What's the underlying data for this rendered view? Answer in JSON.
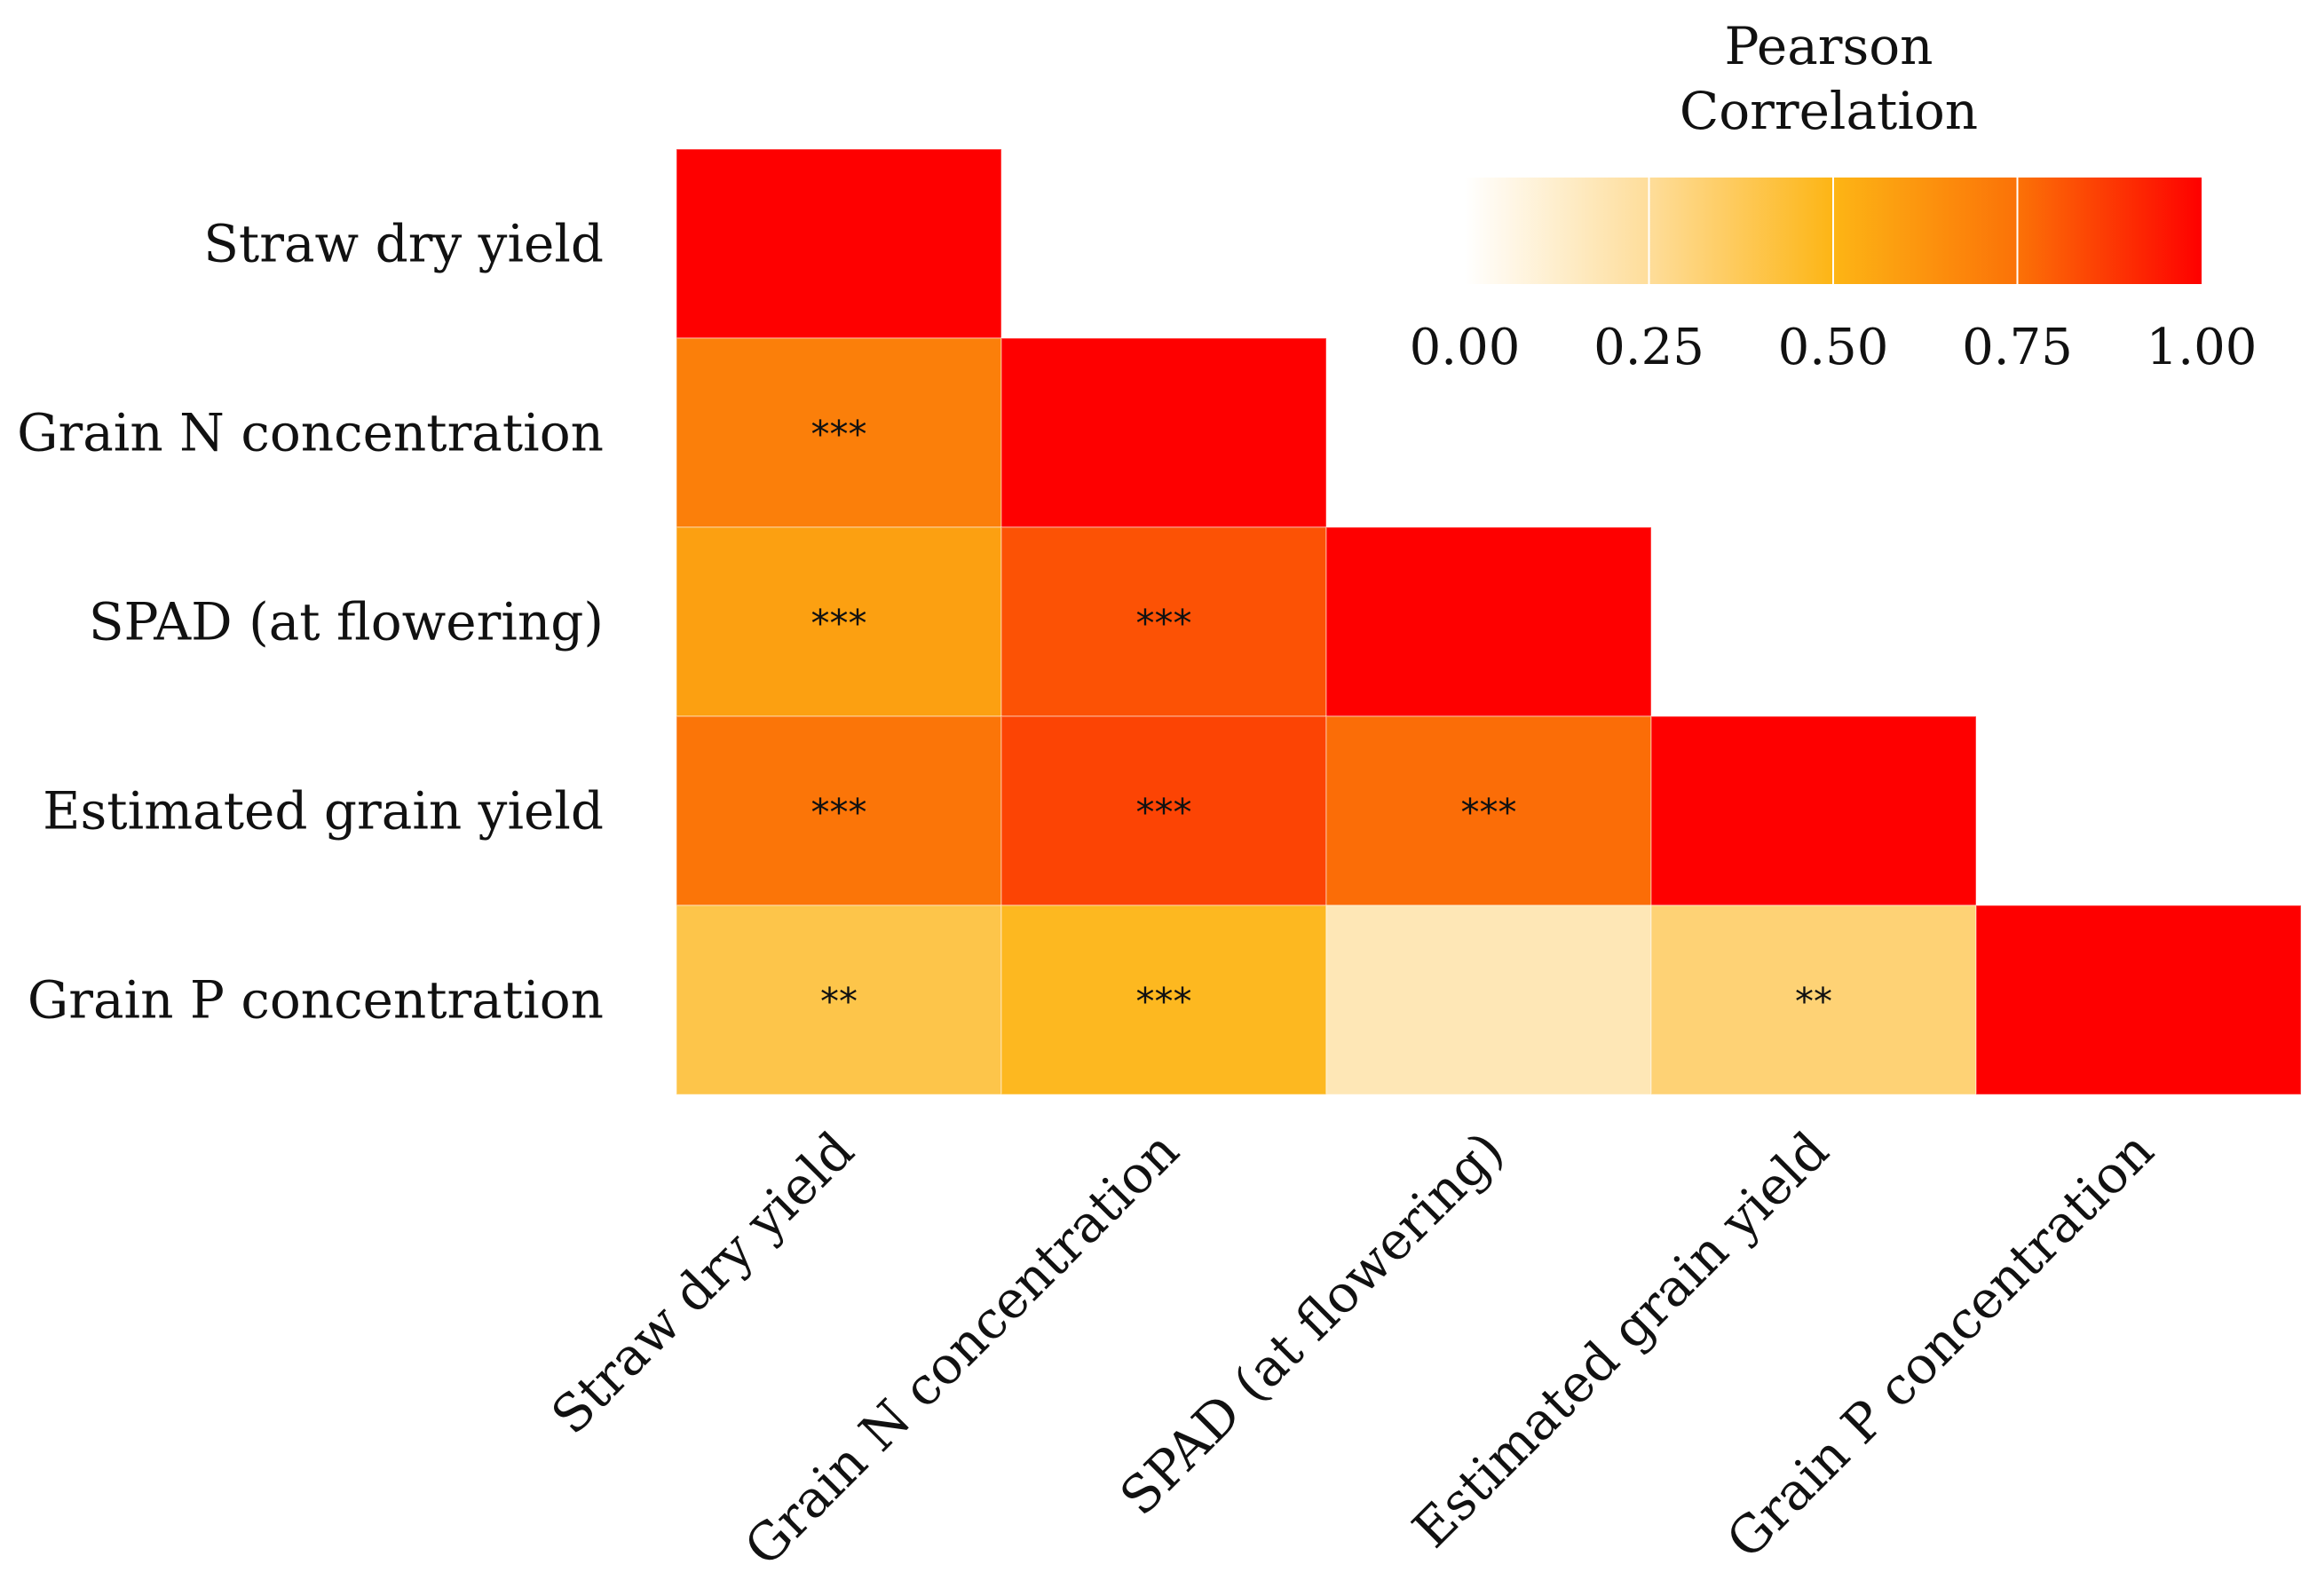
{
  "chart_data": {
    "type": "heatmap",
    "variables": [
      "Straw dry yield",
      "Grain N concentration",
      "SPAD (at flowering)",
      "Estimated grain yield",
      "Grain P concentration"
    ],
    "cells": [
      {
        "row": 0,
        "col": 0,
        "value": 1.0,
        "sig": ""
      },
      {
        "row": 1,
        "col": 0,
        "value": 0.7,
        "sig": "***"
      },
      {
        "row": 1,
        "col": 1,
        "value": 1.0,
        "sig": ""
      },
      {
        "row": 2,
        "col": 0,
        "value": 0.58,
        "sig": "***"
      },
      {
        "row": 2,
        "col": 1,
        "value": 0.82,
        "sig": "***"
      },
      {
        "row": 2,
        "col": 2,
        "value": 1.0,
        "sig": ""
      },
      {
        "row": 3,
        "col": 0,
        "value": 0.74,
        "sig": "***"
      },
      {
        "row": 3,
        "col": 1,
        "value": 0.85,
        "sig": "***"
      },
      {
        "row": 3,
        "col": 2,
        "value": 0.76,
        "sig": "***"
      },
      {
        "row": 3,
        "col": 3,
        "value": 1.0,
        "sig": ""
      },
      {
        "row": 4,
        "col": 0,
        "value": 0.4,
        "sig": "**"
      },
      {
        "row": 4,
        "col": 1,
        "value": 0.48,
        "sig": "***"
      },
      {
        "row": 4,
        "col": 2,
        "value": 0.18,
        "sig": ""
      },
      {
        "row": 4,
        "col": 3,
        "value": 0.32,
        "sig": "**"
      },
      {
        "row": 4,
        "col": 4,
        "value": 1.0,
        "sig": ""
      }
    ],
    "legend": {
      "title_line1": "Pearson",
      "title_line2": "Correlation",
      "ticks": [
        0.0,
        0.25,
        0.5,
        0.75,
        1.0
      ],
      "tick_labels": [
        "0.00",
        "0.25",
        "0.50",
        "0.75",
        "1.00"
      ],
      "range": [
        0,
        1
      ],
      "placement": "top-right"
    },
    "color_stops": [
      {
        "value": 0.0,
        "color": "#ffffff"
      },
      {
        "value": 0.25,
        "color": "#fedd9a"
      },
      {
        "value": 0.5,
        "color": "#fdb515"
      },
      {
        "value": 0.75,
        "color": "#fb7207"
      },
      {
        "value": 1.0,
        "color": "#fe0000"
      }
    ]
  }
}
